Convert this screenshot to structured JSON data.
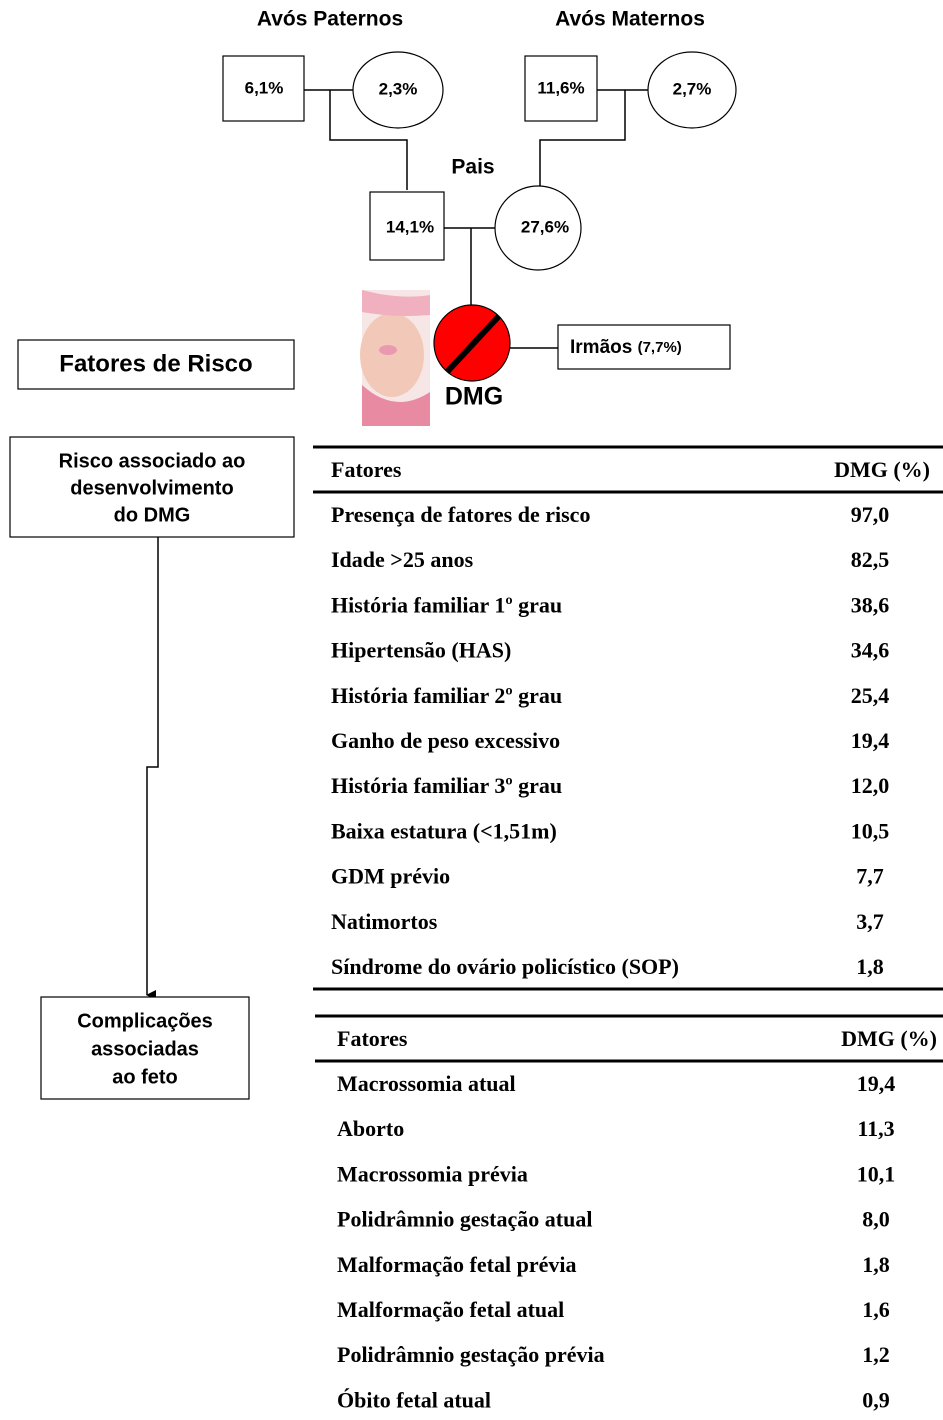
{
  "pedigree": {
    "paternal_label": "Avós Paternos",
    "maternal_label": "Avós Maternos",
    "parents_label": "Pais",
    "paternal_grandfather": "6,1%",
    "paternal_grandmother": "2,3%",
    "maternal_grandfather": "11,6%",
    "maternal_grandmother": "2,7%",
    "father": "14,1%",
    "mother": "27,6%",
    "proband": "DMG",
    "siblings": {
      "label": "Irmãos",
      "value": "(7,7%)"
    }
  },
  "boxes": {
    "risk_factors": "Fatores de Risco",
    "risk_development": [
      "Risco associado ao",
      "desenvolvimento",
      "do DMG"
    ],
    "fetal_complications": [
      "Complicações",
      "associadas",
      "ao feto"
    ]
  },
  "tables": [
    {
      "header": [
        "Fatores",
        "DMG (%)"
      ],
      "rows": [
        [
          "Presença de fatores de risco",
          "97,0"
        ],
        [
          "Idade >25 anos",
          "82,5"
        ],
        [
          "História familiar 1º grau",
          "38,6"
        ],
        [
          "Hipertensão (HAS)",
          "34,6"
        ],
        [
          "História familiar 2º grau",
          "25,4"
        ],
        [
          "Ganho de peso excessivo",
          "19,4"
        ],
        [
          "História familiar 3º grau",
          "12,0"
        ],
        [
          "Baixa estatura (<1,51m)",
          "10,5"
        ],
        [
          "GDM prévio",
          "7,7"
        ],
        [
          "Natimortos",
          "3,7"
        ],
        [
          "Síndrome do ovário policístico (SOP)",
          "1,8"
        ]
      ]
    },
    {
      "header": [
        "Fatores",
        "DMG (%)"
      ],
      "rows": [
        [
          "Macrossomia atual",
          "19,4"
        ],
        [
          "Aborto",
          "11,3"
        ],
        [
          "Macrossomia prévia",
          "10,1"
        ],
        [
          "Polidrâmnio gestação atual",
          "8,0"
        ],
        [
          "Malformação fetal prévia",
          "1,8"
        ],
        [
          "Malformação fetal atual",
          "1,6"
        ],
        [
          "Polidrâmnio gestação prévia",
          "1,2"
        ],
        [
          "Óbito fetal atual",
          "0,9"
        ]
      ]
    }
  ]
}
